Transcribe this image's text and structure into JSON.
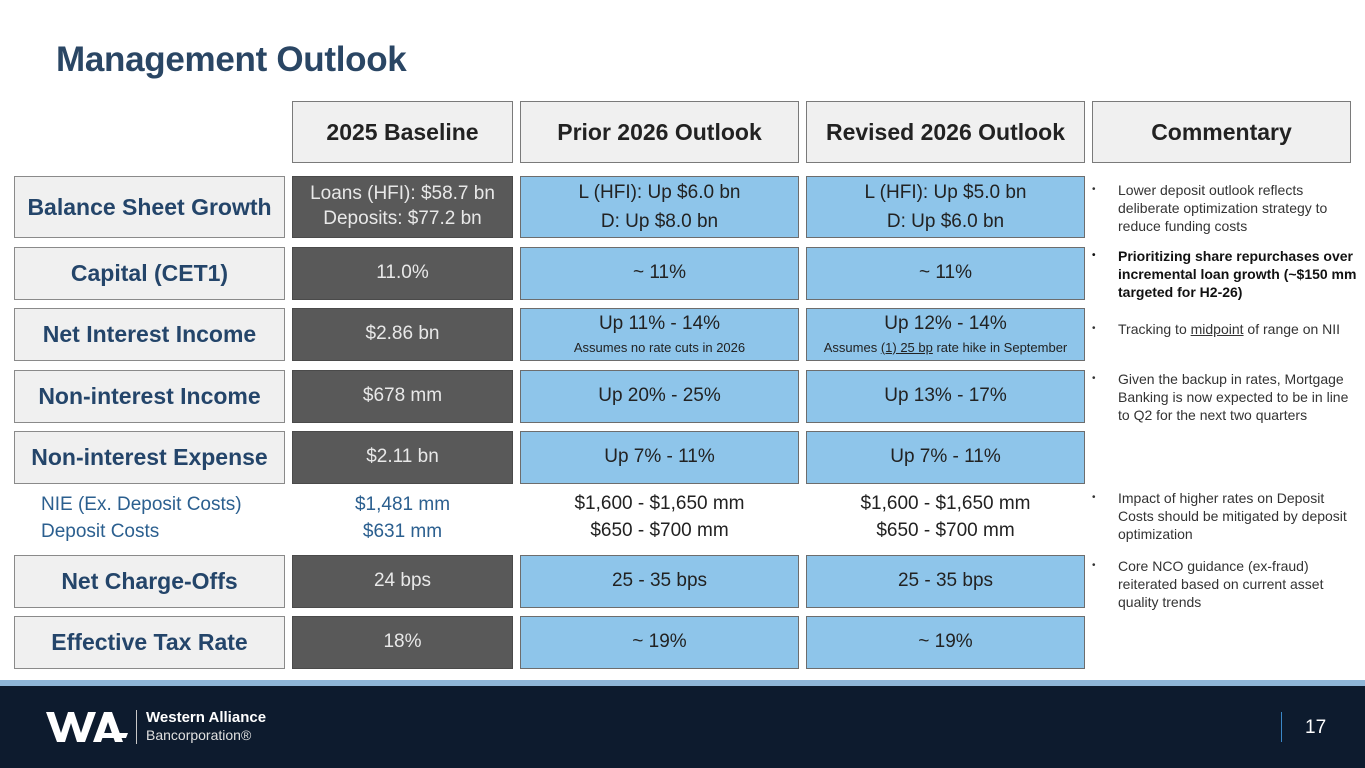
{
  "title": "Management Outlook",
  "headers": [
    "2025 Baseline",
    "Prior 2026 Outlook",
    "Revised 2026 Outlook",
    "Commentary"
  ],
  "rows": {
    "balance_sheet": {
      "label": "Balance Sheet Growth",
      "baseline": [
        "Loans (HFI): $58.7 bn",
        "Deposits: $77.2 bn"
      ],
      "prior": [
        "L (HFI): Up $6.0 bn",
        "D: Up $8.0 bn"
      ],
      "revised": [
        "L (HFI): Up $5.0 bn",
        "D: Up $6.0 bn"
      ]
    },
    "capital": {
      "label": "Capital (CET1)",
      "baseline": "11.0%",
      "prior": "~ 11%",
      "revised": "~ 11%"
    },
    "nii": {
      "label": "Net Interest Income",
      "baseline": "$2.86 bn",
      "prior": "Up 11% - 14%",
      "prior_note": "Assumes no rate cuts in 2026",
      "revised": "Up 12% - 14%",
      "revised_note_pre": "Assumes ",
      "revised_note_u1": "(1) 25 bp",
      "revised_note_post": " rate hike in September"
    },
    "non_interest_income": {
      "label": "Non-interest Income",
      "baseline": "$678 mm",
      "prior": "Up 20% - 25%",
      "revised": "Up 13% - 17%"
    },
    "non_interest_expense": {
      "label": "Non-interest Expense",
      "baseline": "$2.11 bn",
      "prior": "Up 7% - 11%",
      "revised": "Up 7% - 11%"
    },
    "nie_breakdown": {
      "labels": [
        "NIE (Ex. Deposit Costs)",
        "Deposit Costs"
      ],
      "baseline": [
        "$1,481 mm",
        "$631 mm"
      ],
      "prior": [
        "$1,600 - $1,650 mm",
        "$650 - $700 mm"
      ],
      "revised": [
        "$1,600 - $1,650 mm",
        "$650 - $700 mm"
      ]
    },
    "nco": {
      "label": "Net Charge-Offs",
      "baseline": "24 bps",
      "prior": "25 - 35 bps",
      "revised": "25 - 35 bps"
    },
    "tax": {
      "label": "Effective Tax Rate",
      "baseline": "18%",
      "prior": "~ 19%",
      "revised": "~ 19%"
    }
  },
  "commentary": {
    "c1": "Lower deposit outlook reflects deliberate optimization strategy to reduce funding costs",
    "c2": "Prioritizing share repurchases over incremental loan growth (~$150 mm targeted for H2-26)",
    "c3_pre": "Tracking to ",
    "c3_u": "midpoint",
    "c3_post": " of range on NII",
    "c4": "Given the backup in rates, Mortgage Banking is now expected to be in line to Q2 for the next two quarters",
    "c5": "Impact of higher rates on Deposit Costs should be mitigated by deposit optimization",
    "c6": "Core NCO guidance (ex-fraud) reiterated based on current asset quality trends",
    "bullet": "•"
  },
  "footer": {
    "company": "Western Alliance",
    "corp": "Bancorporation®",
    "page": "17"
  },
  "colors": {
    "title": "#2a4664",
    "baseline_fill": "#595959",
    "outlook_fill": "#8ec5ea",
    "footer_bg": "#0d1b2e",
    "stripe": "#8fb6d8"
  }
}
